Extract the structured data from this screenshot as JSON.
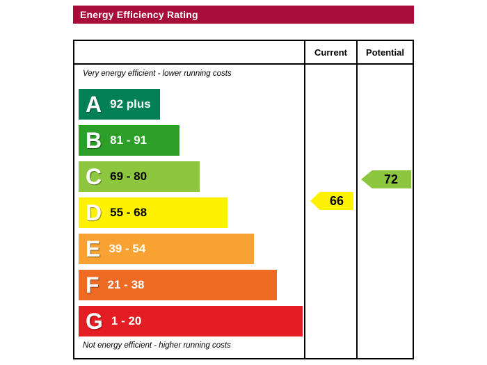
{
  "header": {
    "title": "Energy Efficiency Rating",
    "bg_color": "#a80d39"
  },
  "table": {
    "current_header": "Current",
    "potential_header": "Potential",
    "top_note": "Very energy efficient - lower running costs",
    "bottom_note": "Not energy efficient - higher running costs"
  },
  "bands": [
    {
      "letter": "A",
      "range": "92 plus",
      "color": "#008054"
    },
    {
      "letter": "B",
      "range": "81 - 91",
      "color": "#2c9f29"
    },
    {
      "letter": "C",
      "range": "69 - 80",
      "color": "#8dc63f"
    },
    {
      "letter": "D",
      "range": "55 - 68",
      "color": "#fff200"
    },
    {
      "letter": "E",
      "range": "39 - 54",
      "color": "#f7a233"
    },
    {
      "letter": "F",
      "range": "21 - 38",
      "color": "#ee6b23"
    },
    {
      "letter": "G",
      "range": "1 - 20",
      "color": "#e31d23"
    }
  ],
  "ratings": {
    "current": {
      "value": "66",
      "color": "#fff200"
    },
    "potential": {
      "value": "72",
      "color": "#8dc63f"
    }
  },
  "chart_data": {
    "type": "bar",
    "title": "Energy Efficiency Rating",
    "categories": [
      "A",
      "B",
      "C",
      "D",
      "E",
      "F",
      "G"
    ],
    "band_ranges": [
      "92 plus",
      "81 - 91",
      "69 - 80",
      "55 - 68",
      "39 - 54",
      "21 - 38",
      "1 - 20"
    ],
    "band_colors": [
      "#008054",
      "#2c9f29",
      "#8dc63f",
      "#fff200",
      "#f7a233",
      "#ee6b23",
      "#e31d23"
    ],
    "series": [
      {
        "name": "Current",
        "value": 66,
        "band": "D"
      },
      {
        "name": "Potential",
        "value": 72,
        "band": "C"
      }
    ],
    "annotations": [
      "Very energy efficient - lower running costs",
      "Not energy efficient - higher running costs"
    ],
    "legend_position": "top-right-columns",
    "grid": false
  }
}
